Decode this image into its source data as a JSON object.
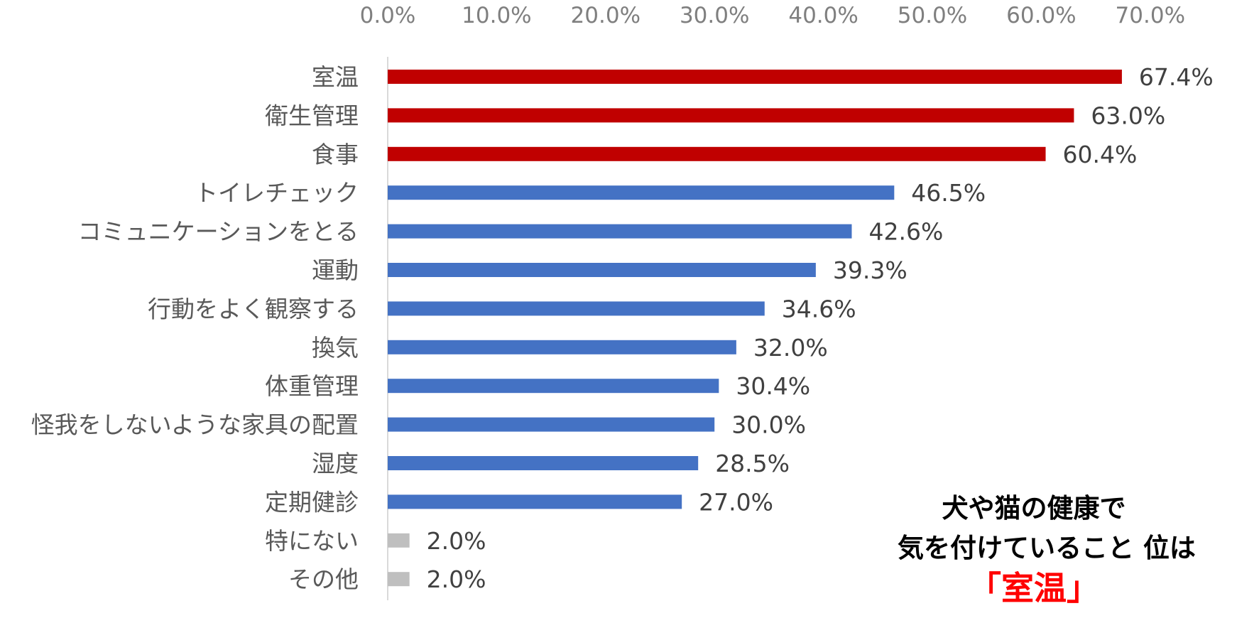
{
  "chart_data": {
    "type": "bar",
    "orientation": "horizontal",
    "title": "",
    "xlabel": "",
    "ylabel": "",
    "xlim": [
      0,
      70
    ],
    "x_ticks": [
      "0.0%",
      "10.0%",
      "20.0%",
      "30.0%",
      "40.0%",
      "50.0%",
      "60.0%",
      "70.0%"
    ],
    "x_axis_position": "top",
    "grid": false,
    "categories": [
      "室温",
      "衛生管理",
      "食事",
      "トイレチェック",
      "コミュニケーションをとる",
      "運動",
      "行動をよく観察する",
      "換気",
      "体重管理",
      "怪我をしないような家具の配置",
      "湿度",
      "定期健診",
      "特にない",
      "その他"
    ],
    "values": [
      67.4,
      63.0,
      60.4,
      46.5,
      42.6,
      39.3,
      34.6,
      32.0,
      30.4,
      30.0,
      28.5,
      27.0,
      2.0,
      2.0
    ],
    "value_labels": [
      "67.4%",
      "63.0%",
      "60.4%",
      "46.5%",
      "42.6%",
      "39.3%",
      "34.6%",
      "32.0%",
      "30.4%",
      "30.0%",
      "28.5%",
      "27.0%",
      "2.0%",
      "2.0%"
    ],
    "bar_colors": [
      "#c00000",
      "#c00000",
      "#c00000",
      "#4472c4",
      "#4472c4",
      "#4472c4",
      "#4472c4",
      "#4472c4",
      "#4472c4",
      "#4472c4",
      "#4472c4",
      "#4472c4",
      "#bfbfbf",
      "#bfbfbf"
    ],
    "axis_color": "#d9d9d9"
  },
  "annotation": {
    "line1": "犬や猫の健康で",
    "line2": "気を付けていること 位は",
    "highlight": "「室温」",
    "text_color": "#000000",
    "highlight_color": "#ff0000"
  }
}
